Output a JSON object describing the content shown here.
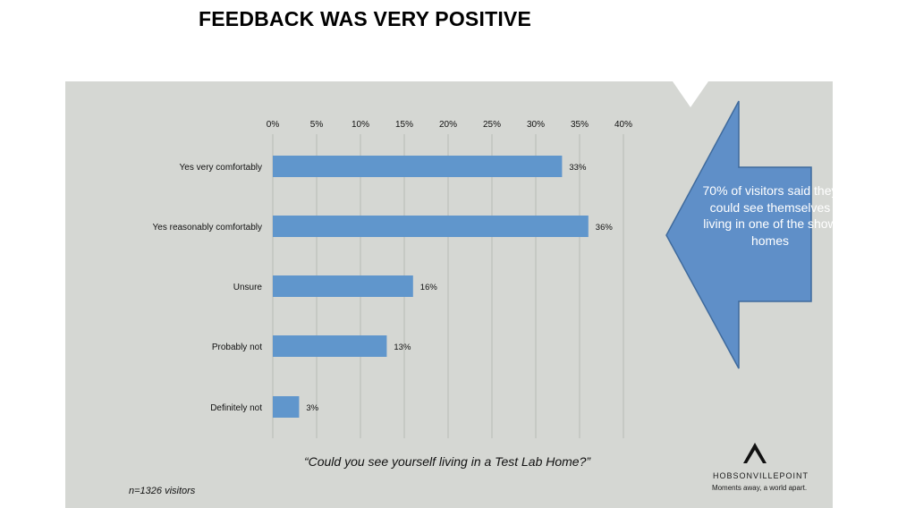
{
  "title": "FEEDBACK WAS VERY POSITIVE",
  "colors": {
    "background": "#d5d7d3",
    "bar": "#6096cc",
    "callout_fill": "#5f8fc8",
    "callout_stroke": "#3f6a9c",
    "gridline": "#b8bbb6"
  },
  "chart_data": {
    "type": "bar",
    "orientation": "horizontal",
    "categories": [
      "Yes very comfortably",
      "Yes reasonably comfortably",
      "Unsure",
      "Probably not",
      "Definitely not"
    ],
    "values": [
      33,
      36,
      16,
      13,
      3
    ],
    "value_labels": [
      "33%",
      "36%",
      "16%",
      "13%",
      "3%"
    ],
    "xlim": [
      0,
      40
    ],
    "x_ticks": [
      0,
      5,
      10,
      15,
      20,
      25,
      30,
      35,
      40
    ],
    "x_tick_labels": [
      "0%",
      "5%",
      "10%",
      "15%",
      "20%",
      "25%",
      "30%",
      "35%",
      "40%"
    ],
    "x_axis_position": "top",
    "grid": true,
    "xlabel": "",
    "ylabel": ""
  },
  "question": "“Could you see yourself living in a Test Lab Home?”",
  "sample_note": "n=1326 visitors",
  "callout": {
    "text": "70% of visitors said they could see themselves living in one of the show homes",
    "icon": "left-arrow-callout-icon"
  },
  "logo": {
    "icon": "peak-chevron-icon",
    "name": "HOBSONVILLEPOINT",
    "tagline": "Moments away, a world apart."
  }
}
